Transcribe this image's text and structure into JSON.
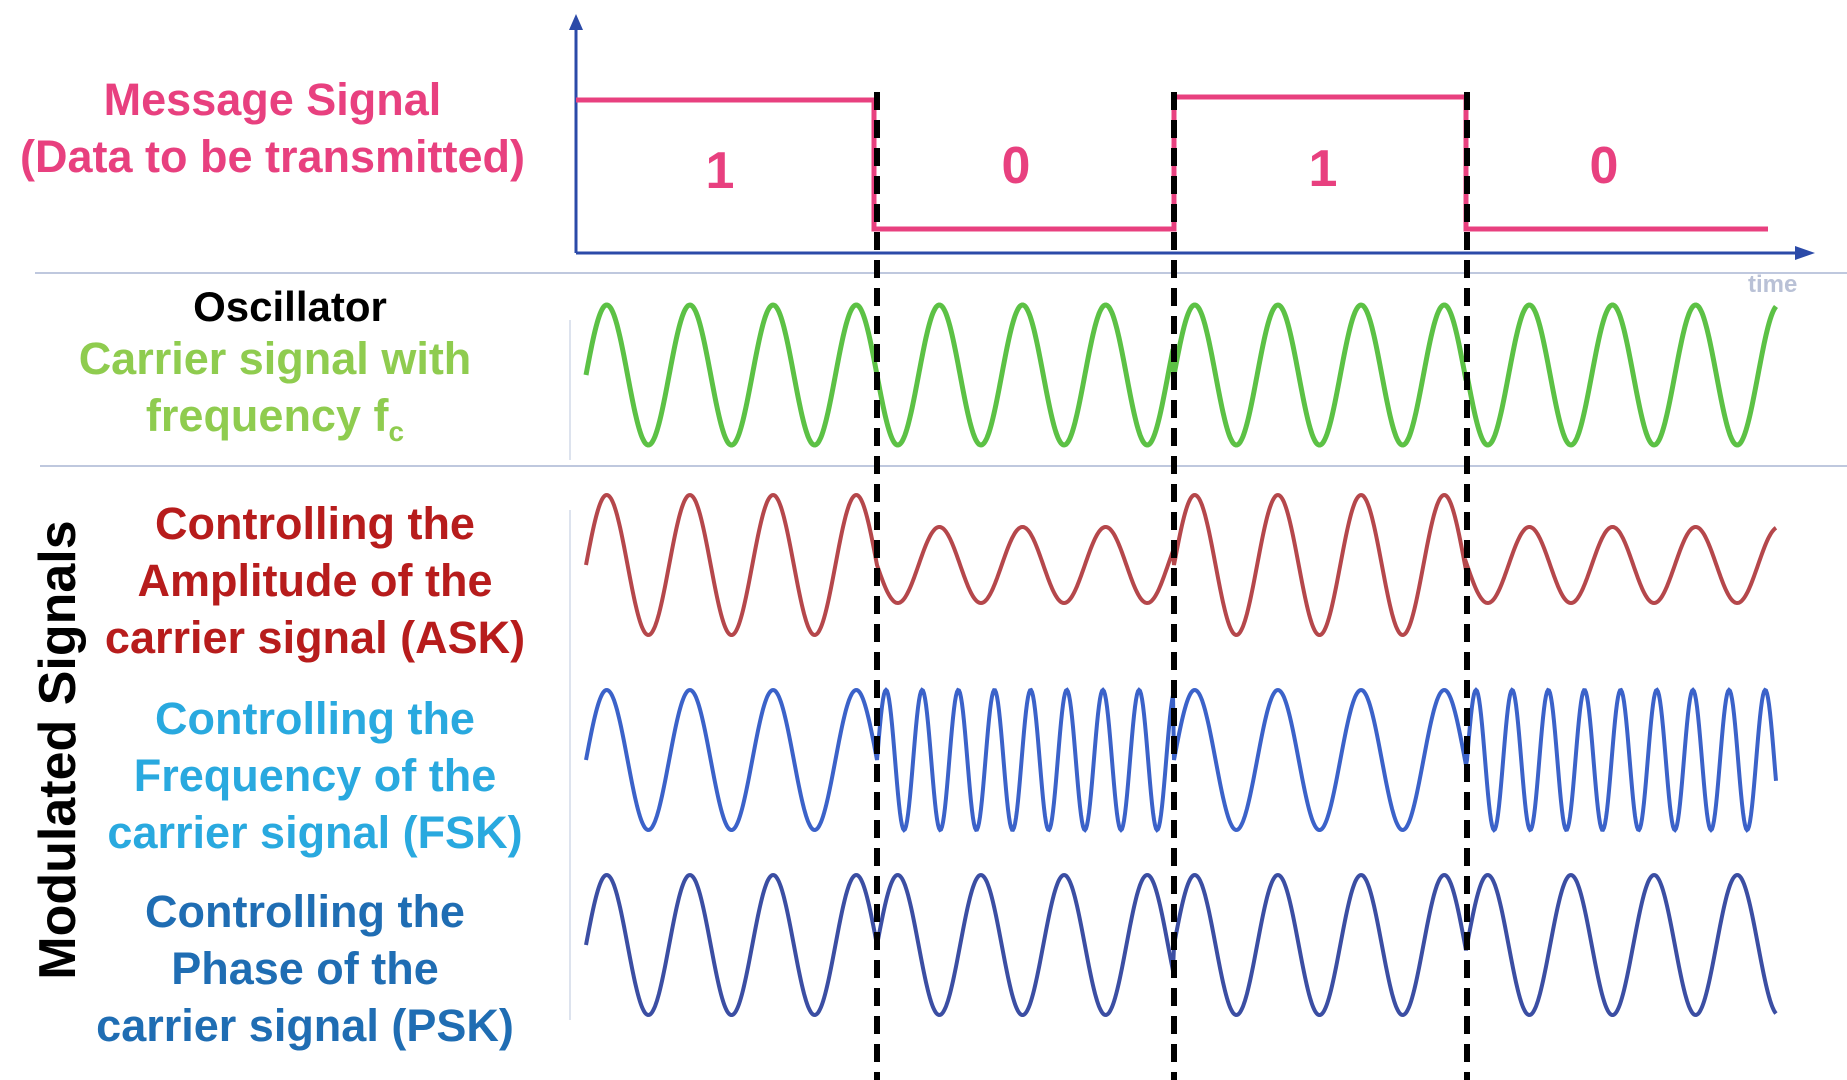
{
  "message": {
    "line1": "Message Signal",
    "line2": "(Data to be transmitted)",
    "bits": [
      "1",
      "0",
      "1",
      "0"
    ],
    "time_label": "time"
  },
  "oscillator": {
    "title": "Oscillator",
    "line1": "Carrier signal with",
    "line2": "frequency f",
    "subscript": "c"
  },
  "modulated_label": "Modulated Signals",
  "ask": {
    "line1": "Controlling the",
    "line2": "Amplitude of the",
    "line3": "carrier signal (ASK)"
  },
  "fsk": {
    "line1": "Controlling the",
    "line2": "Frequency of the",
    "line3": "carrier signal (FSK)"
  },
  "psk": {
    "line1": "Controlling the",
    "line2": "Phase of the",
    "line3": "carrier signal (PSK)"
  },
  "colors": {
    "message": "#e8407f",
    "axis": "#2b4aa8",
    "carrier": "#5cc145",
    "ask_wave": "#b5474b",
    "fsk_wave": "#3b62c9",
    "psk_wave": "#3b4ea3",
    "separator": "#aab6d4",
    "divider": "#000000"
  }
}
